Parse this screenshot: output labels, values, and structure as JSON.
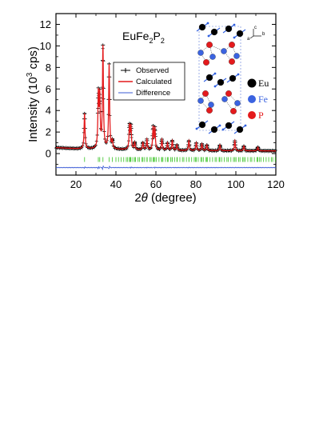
{
  "chart_data": {
    "type": "line",
    "compound": {
      "base": "EuFe",
      "sub1": "2",
      "mid": "P",
      "sub2": "2"
    },
    "xlabel": {
      "pre": "2",
      "theta": "θ",
      "post": " (degree)"
    },
    "ylabel": {
      "pre": "Intensity (10",
      "sup": "3",
      "post": " cps)"
    },
    "xlim": [
      10,
      120
    ],
    "ylim": [
      -2,
      13
    ],
    "xticks": [
      20,
      40,
      60,
      80,
      100,
      120
    ],
    "yticks": [
      0,
      2,
      4,
      6,
      8,
      10,
      12
    ],
    "legend": [
      {
        "name": "Observed",
        "color": "#000000",
        "style": "cross"
      },
      {
        "name": "Calculated",
        "color": "#e41a1c",
        "style": "line"
      },
      {
        "name": "Difference",
        "color": "#3b5bd6",
        "style": "line"
      }
    ],
    "background": {
      "x": [
        10,
        20,
        40,
        60,
        80,
        100,
        120
      ],
      "y": [
        0.55,
        0.45,
        0.38,
        0.32,
        0.28,
        0.26,
        0.25
      ]
    },
    "peaks": [
      {
        "x": 24.3,
        "y": 3.7
      },
      {
        "x": 31.2,
        "y": 5.3
      },
      {
        "x": 31.9,
        "y": 5.0
      },
      {
        "x": 33.5,
        "y": 9.8
      },
      {
        "x": 36.6,
        "y": 8.2
      },
      {
        "x": 38.2,
        "y": 1.1
      },
      {
        "x": 46.8,
        "y": 2.5
      },
      {
        "x": 47.5,
        "y": 2.4
      },
      {
        "x": 49.4,
        "y": 1.0
      },
      {
        "x": 53.5,
        "y": 1.0
      },
      {
        "x": 55.5,
        "y": 1.3
      },
      {
        "x": 58.6,
        "y": 2.4
      },
      {
        "x": 59.5,
        "y": 2.3
      },
      {
        "x": 63.0,
        "y": 1.3
      },
      {
        "x": 65.8,
        "y": 1.0
      },
      {
        "x": 68.2,
        "y": 1.2
      },
      {
        "x": 70.5,
        "y": 0.8
      },
      {
        "x": 76.5,
        "y": 1.2
      },
      {
        "x": 80.2,
        "y": 1.0
      },
      {
        "x": 83.0,
        "y": 0.9
      },
      {
        "x": 85.5,
        "y": 0.8
      },
      {
        "x": 92.0,
        "y": 0.8
      },
      {
        "x": 99.5,
        "y": 1.2
      },
      {
        "x": 104.0,
        "y": 0.7
      },
      {
        "x": 111.0,
        "y": 0.6
      }
    ],
    "reflection_offset": -0.55,
    "difference_offset": -1.3,
    "inset": {
      "axes": {
        "a": "a",
        "b": "b",
        "c": "c"
      },
      "elements": [
        {
          "name": "Eu",
          "color": "#000000"
        },
        {
          "name": "Fe",
          "color": "#3b63e0"
        },
        {
          "name": "P",
          "color": "#e41a1c"
        }
      ]
    }
  }
}
